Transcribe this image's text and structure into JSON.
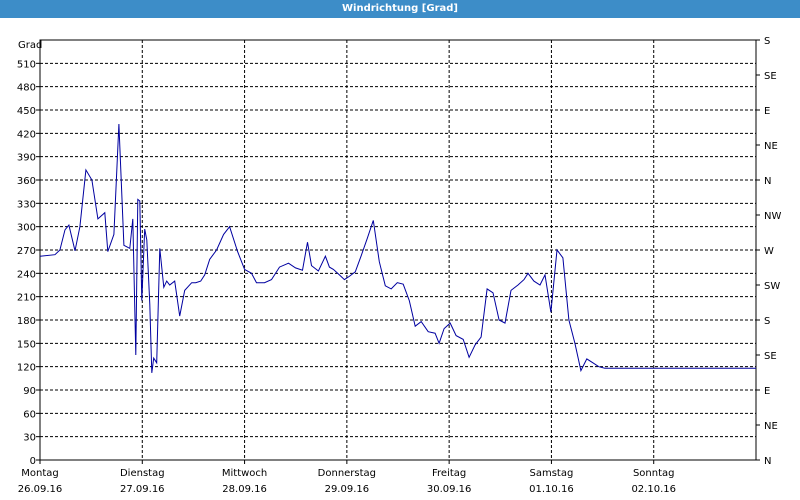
{
  "window": {
    "title": "Windrichtung [Grad]"
  },
  "chart_data": {
    "type": "line",
    "title": "Windrichtung [Grad]",
    "ylabel": "Grad",
    "ylim": [
      0,
      540
    ],
    "y_ticks": [
      0,
      30,
      60,
      90,
      120,
      150,
      180,
      210,
      240,
      270,
      300,
      330,
      360,
      390,
      420,
      450,
      480,
      510
    ],
    "y2_ticks": [
      "N",
      "NE",
      "E",
      "SE",
      "S",
      "SW",
      "W",
      "NW",
      "N",
      "NE",
      "E",
      "SE",
      "S"
    ],
    "x_range_days": [
      0,
      7
    ],
    "x_ticks": [
      {
        "day": "Montag",
        "date": "26.09.16"
      },
      {
        "day": "Dienstag",
        "date": "27.09.16"
      },
      {
        "day": "Mittwoch",
        "date": "28.09.16"
      },
      {
        "day": "Donnerstag",
        "date": "29.09.16"
      },
      {
        "day": "Freitag",
        "date": "30.09.16"
      },
      {
        "day": "Samstag",
        "date": "01.10.16"
      },
      {
        "day": "Sonntag",
        "date": "02.10.16"
      }
    ],
    "grid": true,
    "line_color": "#0000a0",
    "series": [
      {
        "x": [
          0,
          0.146,
          0.195,
          0.244,
          0.283,
          0.342,
          0.39,
          0.449,
          0.507,
          0.566,
          0.634,
          0.663,
          0.722,
          0.771,
          0.82,
          0.878,
          0.907,
          0.937,
          0.956,
          0.976,
          0.995,
          1.024,
          1.044,
          1.073,
          1.093,
          1.112,
          1.141,
          1.171,
          1.21,
          1.239,
          1.268,
          1.317,
          1.366,
          1.415,
          1.483,
          1.522,
          1.571,
          1.61,
          1.659,
          1.727,
          1.795,
          1.854,
          1.932,
          2.0,
          2.068,
          2.117,
          2.195,
          2.263,
          2.341,
          2.429,
          2.498,
          2.566,
          2.615,
          2.654,
          2.722,
          2.79,
          2.829,
          2.868,
          2.927,
          2.976,
          3.024,
          3.083,
          3.141,
          3.2,
          3.259,
          3.317,
          3.376,
          3.434,
          3.493,
          3.551,
          3.61,
          3.668,
          3.727,
          3.795,
          3.863,
          3.902,
          3.951,
          4.01,
          4.068,
          4.137,
          4.195,
          4.254,
          4.312,
          4.371,
          4.429,
          4.488,
          4.546,
          4.605,
          4.673,
          4.732,
          4.771,
          4.829,
          4.888,
          4.937,
          4.995,
          5.054,
          5.112,
          5.171,
          5.229,
          5.288,
          5.346,
          5.405,
          5.463,
          5.522,
          5.58,
          5.639,
          5.698,
          5.756,
          5.815,
          5.873,
          5.932,
          5.99,
          6.049,
          6.107,
          6.166,
          6.224,
          6.283,
          6.341,
          6.4,
          6.459,
          6.517,
          6.576,
          6.634,
          6.693,
          6.751,
          6.81,
          6.868,
          6.927,
          6.985,
          7.0
        ],
        "y": [
          262,
          264,
          270,
          296,
          302,
          269,
          300,
          373,
          360,
          310,
          318,
          268,
          290,
          432,
          276,
          272,
          310,
          135,
          335,
          333,
          205,
          297,
          283,
          200,
          112,
          131,
          125,
          272,
          222,
          230,
          225,
          230,
          185,
          218,
          228,
          228,
          230,
          238,
          258,
          270,
          290,
          300,
          268,
          245,
          240,
          228,
          228,
          232,
          248,
          253,
          247,
          244,
          280,
          250,
          243,
          262,
          248,
          245,
          238,
          232,
          236,
          242,
          263,
          285,
          308,
          255,
          224,
          220,
          228,
          226,
          205,
          172,
          178,
          165,
          163,
          150,
          169,
          176,
          160,
          155,
          132,
          148,
          158,
          220,
          215,
          180,
          176,
          218,
          225,
          232,
          240,
          230,
          225,
          238,
          190,
          270,
          260,
          180,
          150,
          115,
          130,
          125,
          120,
          118,
          118,
          118,
          118,
          118,
          118,
          118,
          118,
          118,
          118,
          118,
          118,
          118,
          118,
          118,
          118,
          118,
          118,
          118,
          118,
          118,
          118,
          118,
          118,
          118,
          118,
          118
        ]
      }
    ]
  }
}
